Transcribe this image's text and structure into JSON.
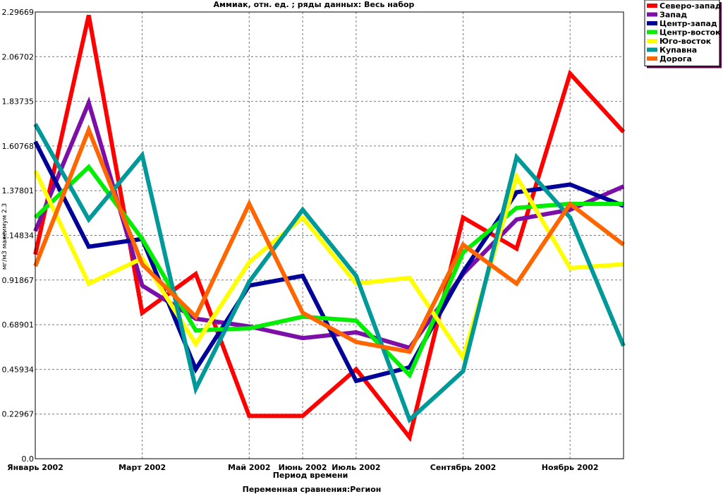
{
  "chart_data": {
    "type": "line",
    "title": "Аммиак, отн. ед. ; ряды данных: Весь набор",
    "xlabel": "Период времени",
    "ylabel": "мг/м3 максимум 2.3",
    "footer": "Переменная сравнения:Регион",
    "ylim": [
      0,
      2.29669
    ],
    "y_ticks": [
      "0.0",
      "0.22967",
      "0.45934",
      "0.68901",
      "0.91867",
      "1.14834",
      "1.37801",
      "1.60768",
      "1.83735",
      "2.06702",
      "2.29669"
    ],
    "x_tick_labels": [
      {
        "i": 0,
        "label": "Январь 2002"
      },
      {
        "i": 2,
        "label": "Март 2002"
      },
      {
        "i": 4,
        "label": "Май 2002"
      },
      {
        "i": 5,
        "label": "Июнь 2002"
      },
      {
        "i": 6,
        "label": "Июль 2002"
      },
      {
        "i": 8,
        "label": "Сентябрь 2002"
      },
      {
        "i": 10,
        "label": "Ноябрь 2002"
      }
    ],
    "x_count": 12,
    "grid": true,
    "legend_position": "top-right",
    "series": [
      {
        "name": "Северо-запад",
        "color": "#ff0000",
        "values": [
          1.05,
          2.28,
          0.75,
          0.95,
          0.22,
          0.22,
          0.46,
          0.11,
          1.24,
          1.08,
          1.98,
          1.68
        ]
      },
      {
        "name": "Запад",
        "color": "#7b0fa8",
        "values": [
          1.17,
          1.83,
          0.89,
          0.72,
          0.68,
          0.62,
          0.65,
          0.57,
          0.95,
          1.23,
          1.28,
          1.4
        ]
      },
      {
        "name": "Центр-запад",
        "color": "#000099",
        "values": [
          1.63,
          1.09,
          1.13,
          0.46,
          0.89,
          0.94,
          0.4,
          0.47,
          0.96,
          1.37,
          1.41,
          1.3
        ]
      },
      {
        "name": "Центр-восток",
        "color": "#00ee00",
        "values": [
          1.24,
          1.5,
          1.13,
          0.66,
          0.67,
          0.73,
          0.71,
          0.43,
          1.06,
          1.29,
          1.31,
          1.31
        ]
      },
      {
        "name": "Юго-восток",
        "color": "#ffff00",
        "values": [
          1.48,
          0.9,
          1.03,
          0.59,
          1.01,
          1.24,
          0.9,
          0.93,
          0.52,
          1.45,
          0.98,
          1.0
        ]
      },
      {
        "name": "Купавна",
        "color": "#009999",
        "values": [
          1.72,
          1.23,
          1.56,
          0.36,
          0.91,
          1.28,
          0.94,
          0.2,
          0.45,
          1.55,
          1.24,
          0.58
        ]
      },
      {
        "name": "Дорога",
        "color": "#ff6600",
        "values": [
          0.99,
          1.69,
          1.0,
          0.73,
          1.31,
          0.75,
          0.6,
          0.55,
          1.1,
          0.9,
          1.31,
          1.1
        ]
      }
    ]
  }
}
